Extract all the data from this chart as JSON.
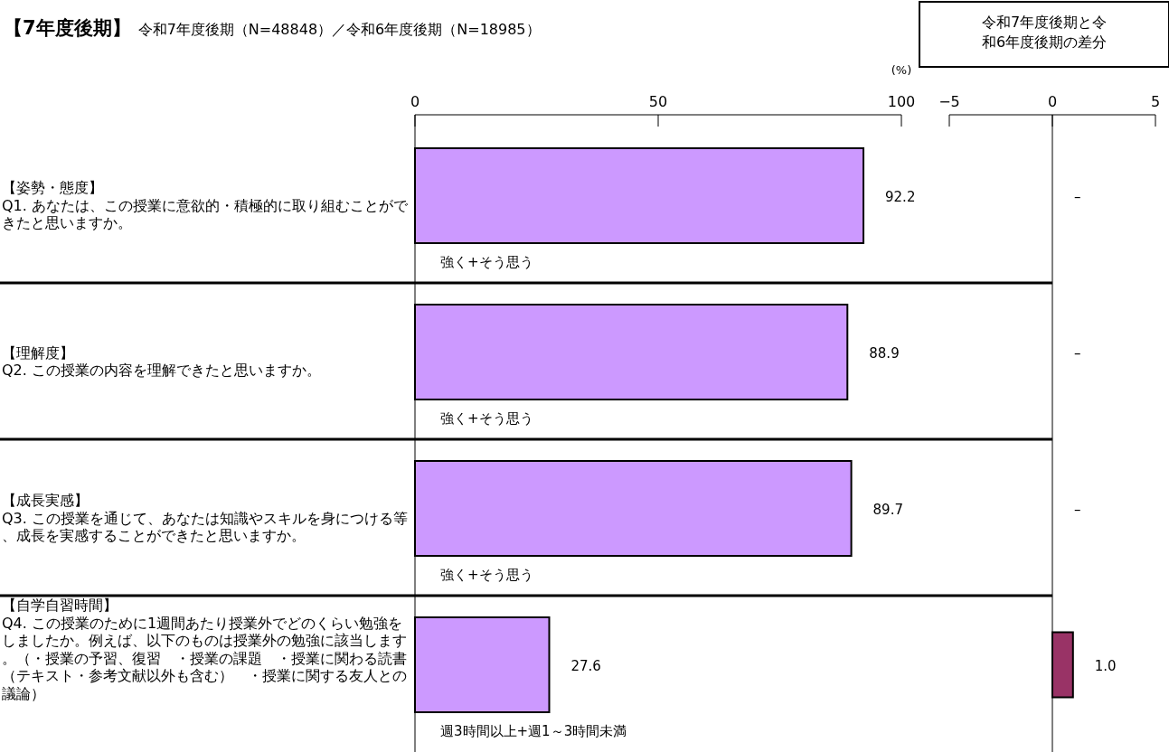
{
  "chart_data": [
    {
      "type": "bar",
      "orientation": "horizontal",
      "title": "【7年度後期】",
      "subtitle": "令和7年度後期（N=48848）／令和6年度後期（N=18985）",
      "xlabel": "(%)",
      "categories": [
        "【姿勢・態度】\nQ1. あなたは、この授業に意欲的・積極的に取り組むことができたと思いますか。",
        "【理解度】\nQ2. この授業の内容を理解できたと思いますか。",
        "【成長実感】\nQ3. この授業を通じて、あなたは知識やスキルを身につける等、成長を実感することができたと思いますか。",
        "【自学自習時間】\nQ4. この授業のために1週間あたり授業外でどのくらい勉強をしましたか。例えば、以下のものは授業外の勉強に該当します。（・授業の予習、復習　・授業の課題　・授業に関わる読書（テキスト・参考文献以外も含む）　・授業に関する友人との議論）"
      ],
      "values": [
        92.2,
        88.9,
        89.7,
        27.6
      ],
      "color": "#cc99ff",
      "xlim": [
        0,
        100
      ],
      "xticks": [
        0,
        50,
        100
      ],
      "data_labels": true,
      "annotations": [
        "強く+そう思う",
        "強く+そう思う",
        "強く+そう思う",
        "週3時間以上+週1～3時間未満"
      ]
    },
    {
      "type": "bar",
      "orientation": "horizontal",
      "title": "令和7年度後期と令和6年度後期の差分",
      "categories": [
        null,
        null,
        null,
        null
      ],
      "values": [
        null,
        null,
        null,
        1.0
      ],
      "value_labels": [
        "–",
        "–",
        "–",
        "1.0"
      ],
      "color": "#993366",
      "xlim": [
        -5,
        5
      ],
      "xticks": [
        -5,
        0,
        5
      ]
    }
  ]
}
